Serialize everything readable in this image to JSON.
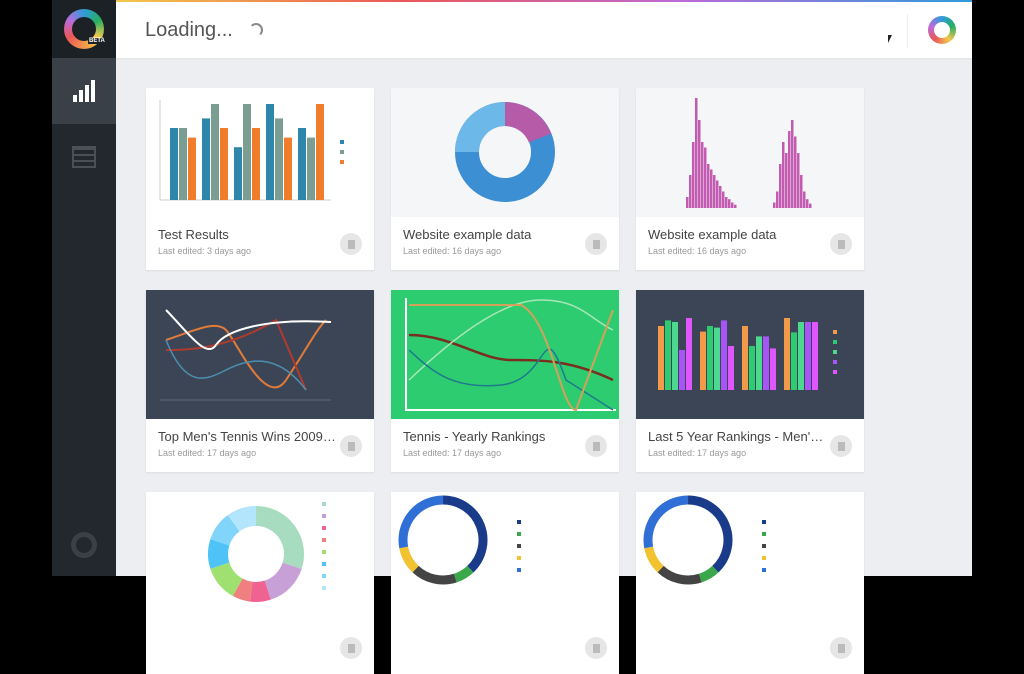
{
  "app": {
    "logo_badge": "BETA"
  },
  "sidebar": {
    "items": [
      {
        "icon": "bar-chart-icon",
        "active": true
      },
      {
        "icon": "table-icon",
        "active": false
      }
    ],
    "bottom_icon": "lifebuoy-icon"
  },
  "header": {
    "title": "Loading...",
    "status": "loading"
  },
  "colors": {
    "sidebar": "#23282e",
    "accent_green": "#2ecc71",
    "chart_dark": "#3c4556"
  },
  "cards": [
    {
      "title": "Test Results",
      "subtitle": "Last edited: 3 days ago",
      "thumb": "bar"
    },
    {
      "title": "Website example data",
      "subtitle": "Last edited: 16 days ago",
      "thumb": "donut"
    },
    {
      "title": "Website example data",
      "subtitle": "Last edited: 16 days ago",
      "thumb": "histogram"
    },
    {
      "title": "Top Men's Tennis Wins 2009 - ...",
      "subtitle": "Last edited: 17 days ago",
      "thumb": "line-dark"
    },
    {
      "title": "Tennis - Yearly Rankings",
      "subtitle": "Last edited: 17 days ago",
      "thumb": "line-green"
    },
    {
      "title": "Last 5 Year Rankings - Men's ...",
      "subtitle": "Last edited: 17 days ago",
      "thumb": "bar-dark"
    },
    {
      "title": "",
      "subtitle": "",
      "thumb": "donut-multi"
    },
    {
      "title": "",
      "subtitle": "",
      "thumb": "donut-ring"
    },
    {
      "title": "",
      "subtitle": "",
      "thumb": "donut-ring"
    }
  ]
}
